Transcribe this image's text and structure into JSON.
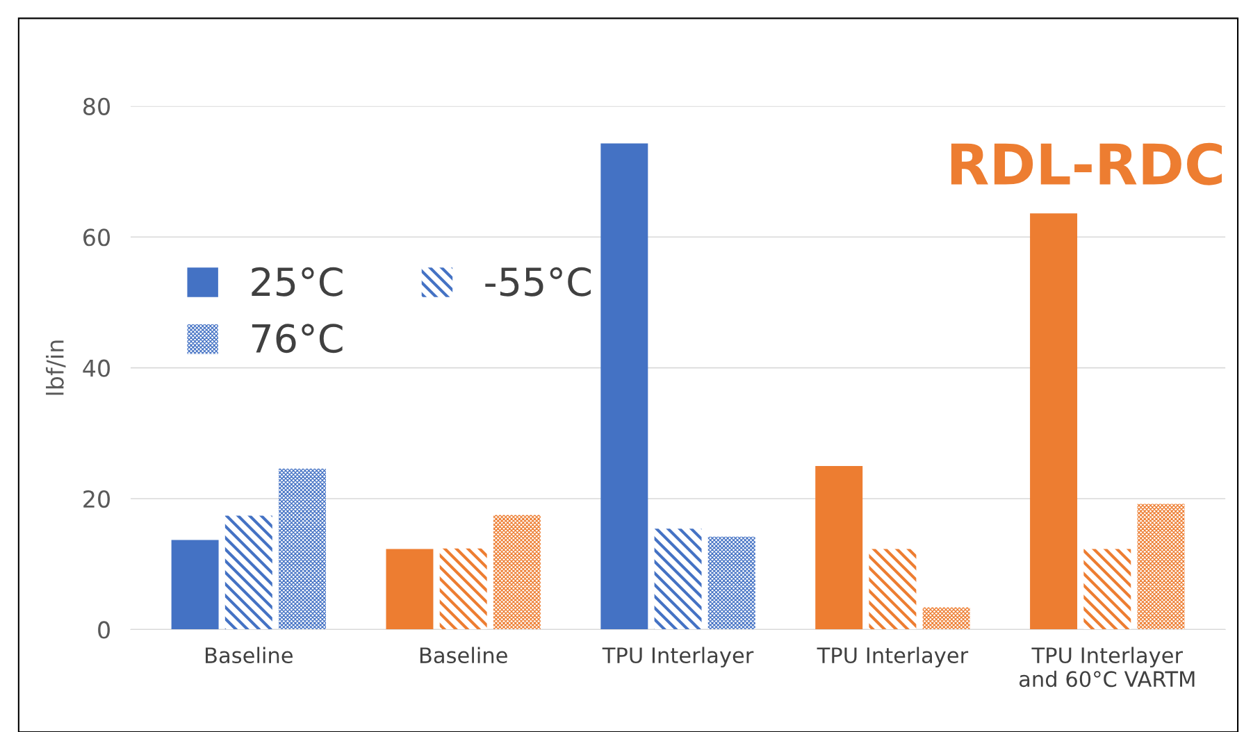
{
  "chart_data": {
    "type": "bar",
    "ylabel": "lbf/in",
    "categories": [
      "Baseline",
      "Baseline",
      "TPU Interlayer",
      "TPU Interlayer",
      "TPU Interlayer\nand 60°C VARTM"
    ],
    "series": [
      {
        "name": "25°C",
        "color": "#4472c4",
        "colors": [
          "#4472c4",
          "#ed7d31",
          "#4472c4",
          "#ed7d31",
          "#ed7d31"
        ],
        "values": [
          13.7,
          12.3,
          74.3,
          25.0,
          63.6
        ]
      },
      {
        "name": "-55°C",
        "color": "#4472c4",
        "colors": [
          "#4472c4",
          "#ed7d31",
          "#4472c4",
          "#ed7d31",
          "#ed7d31"
        ],
        "values": [
          17.4,
          12.4,
          15.4,
          12.3,
          12.3
        ]
      },
      {
        "name": "76°C",
        "color": "#4472c4",
        "colors": [
          "#4472c4",
          "#ed7d31",
          "#4472c4",
          "#ed7d31",
          "#ed7d31"
        ],
        "values": [
          24.6,
          17.5,
          14.2,
          3.4,
          19.2
        ]
      }
    ],
    "annotations": [
      "RDL-RDC"
    ],
    "ylim": [
      0,
      80
    ],
    "yticks": [
      0,
      20,
      40,
      60,
      80
    ],
    "grid": "y",
    "legend": "top left"
  }
}
